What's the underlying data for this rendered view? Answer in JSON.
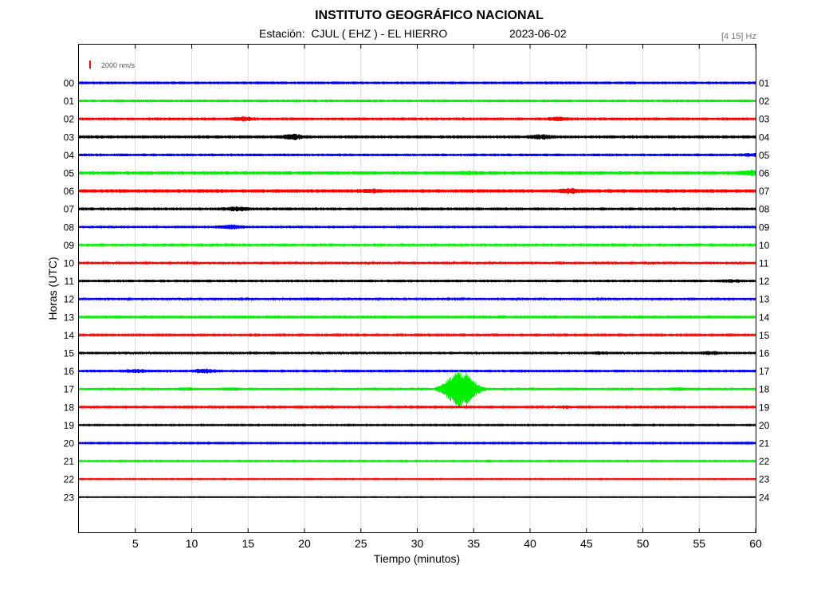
{
  "header": {
    "title": "INSTITUTO GEOGRÁFICO NACIONAL",
    "station_label": "Estación:  CJUL ( EHZ ) - EL HIERRO",
    "date": "2023-06-02",
    "band": "[4 15] Hz"
  },
  "chart_data": {
    "type": "line",
    "title": "INSTITUTO GEOGRÁFICO NACIONAL",
    "xlabel": "Tiempo (minutos)",
    "ylabel": "Horas (UTC)",
    "xlim": [
      0,
      60
    ],
    "x_ticks": [
      "5",
      "10",
      "15",
      "20",
      "25",
      "30",
      "35",
      "40",
      "45",
      "50",
      "55",
      "60"
    ],
    "scale_label": "2000 nm/s",
    "grid": true,
    "colors": [
      "#0000ff",
      "#00ee00",
      "#ff0000",
      "#000000"
    ],
    "series": [
      {
        "left_label": "00",
        "right_label": "01",
        "color": "#0000ff",
        "amplitude": 0.55,
        "events": []
      },
      {
        "left_label": "01",
        "right_label": "02",
        "color": "#00ee00",
        "amplitude": 0.55,
        "events": []
      },
      {
        "left_label": "02",
        "right_label": "03",
        "color": "#ff0000",
        "amplitude": 0.55,
        "events": [
          [
            14.5,
            1.4
          ],
          [
            42.5,
            1.3
          ]
        ]
      },
      {
        "left_label": "03",
        "right_label": "04",
        "color": "#000000",
        "amplitude": 0.6,
        "events": [
          [
            19,
            1.6
          ],
          [
            41,
            1.4
          ]
        ]
      },
      {
        "left_label": "04",
        "right_label": "05",
        "color": "#0000ff",
        "amplitude": 0.55,
        "events": [
          [
            59.5,
            1.2
          ]
        ]
      },
      {
        "left_label": "05",
        "right_label": "06",
        "color": "#00ee00",
        "amplitude": 0.65,
        "events": [
          [
            34.5,
            1.2
          ],
          [
            59.5,
            1.5
          ]
        ]
      },
      {
        "left_label": "06",
        "right_label": "07",
        "color": "#ff0000",
        "amplitude": 0.7,
        "events": [
          [
            26,
            1.2
          ],
          [
            43.5,
            1.3
          ]
        ]
      },
      {
        "left_label": "07",
        "right_label": "08",
        "color": "#000000",
        "amplitude": 0.6,
        "events": [
          [
            14,
            1.3
          ]
        ]
      },
      {
        "left_label": "08",
        "right_label": "09",
        "color": "#0000ff",
        "amplitude": 0.5,
        "events": [
          [
            13.5,
            1.6
          ]
        ]
      },
      {
        "left_label": "09",
        "right_label": "10",
        "color": "#00ee00",
        "amplitude": 0.4,
        "events": [
          [
            53,
            1.2
          ]
        ]
      },
      {
        "left_label": "10",
        "right_label": "11",
        "color": "#ff0000",
        "amplitude": 0.45,
        "events": [
          [
            23,
            1.1
          ]
        ]
      },
      {
        "left_label": "11",
        "right_label": "12",
        "color": "#000000",
        "amplitude": 0.55,
        "events": [
          [
            58,
            1.2
          ]
        ]
      },
      {
        "left_label": "12",
        "right_label": "13",
        "color": "#0000ff",
        "amplitude": 0.45,
        "events": [
          [
            20.5,
            1.2
          ]
        ]
      },
      {
        "left_label": "13",
        "right_label": "14",
        "color": "#00ee00",
        "amplitude": 0.3,
        "events": [
          [
            37.5,
            1.5
          ]
        ]
      },
      {
        "left_label": "14",
        "right_label": "15",
        "color": "#ff0000",
        "amplitude": 0.3,
        "events": []
      },
      {
        "left_label": "15",
        "right_label": "16",
        "color": "#000000",
        "amplitude": 0.5,
        "events": [
          [
            46,
            1.2
          ],
          [
            56,
            1.3
          ]
        ]
      },
      {
        "left_label": "16",
        "right_label": "17",
        "color": "#0000ff",
        "amplitude": 0.55,
        "events": [
          [
            5,
            1.3
          ],
          [
            11,
            1.4
          ]
        ]
      },
      {
        "left_label": "17",
        "right_label": "18",
        "color": "#00ee00",
        "amplitude": 0.45,
        "events": [
          [
            9.5,
            1.3
          ],
          [
            13.5,
            1.3
          ],
          [
            33.8,
            6.5
          ],
          [
            53,
            1.3
          ]
        ]
      },
      {
        "left_label": "18",
        "right_label": "19",
        "color": "#ff0000",
        "amplitude": 0.3,
        "events": [
          [
            43,
            1.6
          ]
        ]
      },
      {
        "left_label": "19",
        "right_label": "20",
        "color": "#000000",
        "amplitude": 0.25,
        "events": []
      },
      {
        "left_label": "20",
        "right_label": "21",
        "color": "#0000ff",
        "amplitude": 0.25,
        "events": [
          [
            2,
            1.1
          ],
          [
            59,
            1.1
          ]
        ]
      },
      {
        "left_label": "21",
        "right_label": "22",
        "color": "#00ee00",
        "amplitude": 0.25,
        "events": []
      },
      {
        "left_label": "22",
        "right_label": "23",
        "color": "#ff0000",
        "amplitude": 0.2,
        "events": []
      },
      {
        "left_label": "23",
        "right_label": "24",
        "color": "#000000",
        "amplitude": 0.15,
        "events": [
          [
            5.5,
            1.0
          ],
          [
            47,
            1.0
          ]
        ]
      }
    ]
  }
}
